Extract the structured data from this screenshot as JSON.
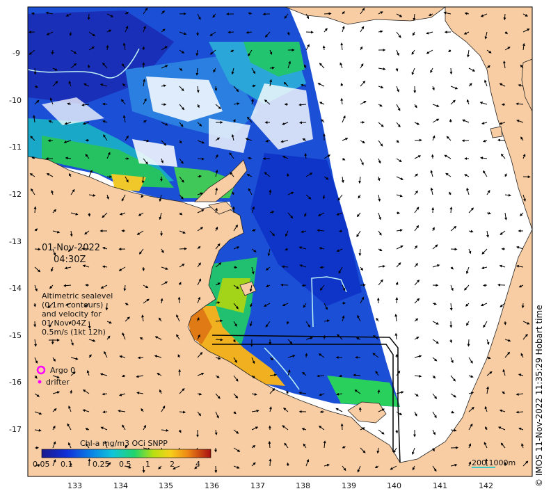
{
  "map": {
    "date": "01-Nov-2022",
    "time": "04:30Z",
    "legend_lines": [
      "Altimetric sealevel",
      "(0.1m contours)",
      "and velocity for",
      "01 Nov 04Z",
      "0.5m/s (1kt 12h)"
    ],
    "argo_label": "Argo 0",
    "drifter_label": "drifter",
    "colorbar": {
      "title": "Chl-a mg/m3 OCi SNPP",
      "ticks": [
        "0.05",
        "0.1",
        "0.25",
        "0.5",
        "1",
        "2",
        "4"
      ]
    },
    "scale_bar": "200  1000m",
    "credit": "© IMOS 11-Nov-2022 11:35:29 Hobart time",
    "x_ticks": [
      "133",
      "134",
      "135",
      "136",
      "137",
      "138",
      "139",
      "140",
      "141",
      "142"
    ],
    "y_ticks": [
      "-9",
      "-10",
      "-11",
      "-12",
      "-13",
      "-14",
      "-15",
      "-16",
      "-17"
    ],
    "colors": {
      "land": "#f9cda3",
      "ocean": "#ffffff",
      "argo": "#ff00ff",
      "contour": "#bff3f5"
    }
  }
}
